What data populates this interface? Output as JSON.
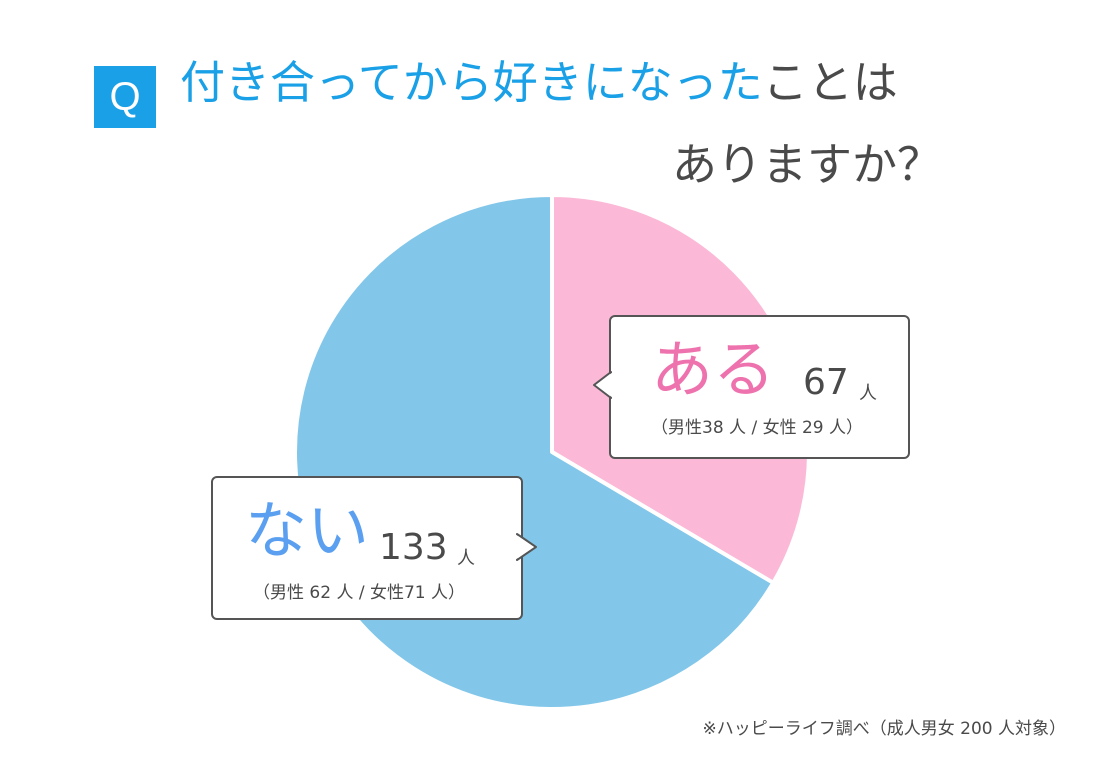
{
  "header": {
    "badge": "Q",
    "title_blue": "付き合ってから好きになった",
    "title_gray": "ことは",
    "title_line2": "ありますか？"
  },
  "chart_data": {
    "type": "pie",
    "title": "付き合ってから好きになったことはありますか？",
    "unit": "人",
    "slices": [
      {
        "label": "ある",
        "value": 67,
        "color": "#fbb9d7",
        "label_color": "#ee72ad",
        "breakdown": {
          "male": 38,
          "female": 29
        },
        "detail_text": "（男性38 人 / 女性 29 人）"
      },
      {
        "label": "ない",
        "value": 133,
        "color": "#82c6e9",
        "label_color": "#5b9ff0",
        "breakdown": {
          "male": 62,
          "female": 71
        },
        "detail_text": "（男性 62 人 / 女性71 人）"
      }
    ],
    "total": 200
  },
  "footer": {
    "source": "※ハッピーライフ調べ（成人男女 200 人対象）"
  }
}
